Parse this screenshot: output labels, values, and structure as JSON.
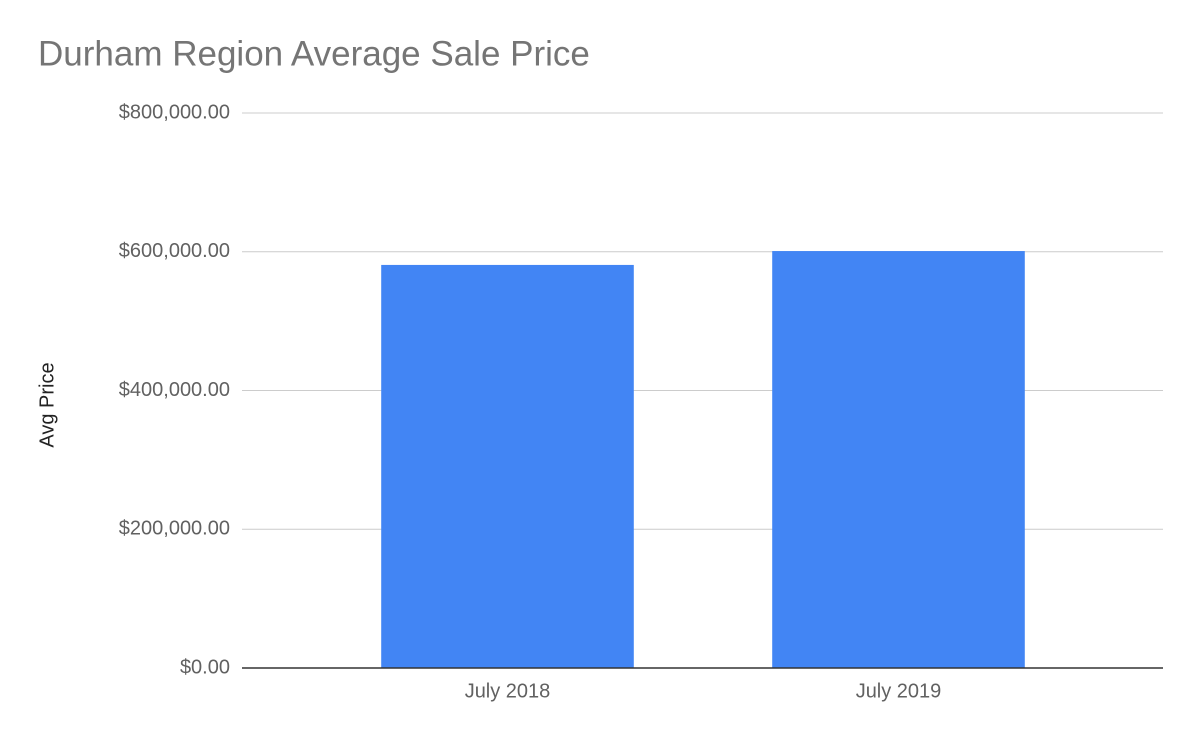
{
  "chart_data": {
    "type": "bar",
    "title": "Durham Region Average Sale Price",
    "y_label": "Avg Price",
    "categories": [
      "July 2018",
      "July 2019"
    ],
    "values": [
      581000,
      601000
    ],
    "color": "#4285f4",
    "ylim": [
      0,
      800000
    ],
    "yticks": [
      {
        "value": 0,
        "label": "$0.00"
      },
      {
        "value": 200000,
        "label": "$200,000.00"
      },
      {
        "value": 400000,
        "label": "$400,000.00"
      },
      {
        "value": 600000,
        "label": "$600,000.00"
      },
      {
        "value": 800000,
        "label": "$800,000.00"
      }
    ],
    "grid": true
  }
}
